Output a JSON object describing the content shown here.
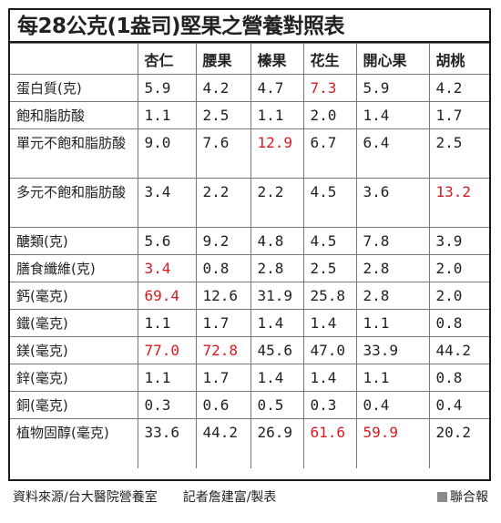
{
  "title": "每28公克(1盎司)堅果之營養對照表",
  "columns": [
    "",
    "杏仁",
    "腰果",
    "榛果",
    "花生",
    "開心果",
    "胡桃"
  ],
  "rows": [
    {
      "label": "蛋白質(克)",
      "values": [
        "5.9",
        "4.2",
        "4.7",
        "7.3",
        "5.9",
        "4.2"
      ],
      "highlight": [
        false,
        false,
        false,
        true,
        false,
        false
      ],
      "tall": false
    },
    {
      "label": "飽和脂肪酸",
      "values": [
        "1.1",
        "2.5",
        "1.1",
        "2.0",
        "1.4",
        "1.7"
      ],
      "highlight": [
        false,
        false,
        false,
        false,
        false,
        false
      ],
      "tall": false
    },
    {
      "label": "單元不飽和脂肪酸",
      "values": [
        "9.0",
        "7.6",
        "12.9",
        "6.7",
        "6.4",
        "2.5"
      ],
      "highlight": [
        false,
        false,
        true,
        false,
        false,
        false
      ],
      "tall": true
    },
    {
      "label": "多元不飽和脂肪酸",
      "values": [
        "3.4",
        "2.2",
        "2.2",
        "4.5",
        "3.6",
        "13.2"
      ],
      "highlight": [
        false,
        false,
        false,
        false,
        false,
        true
      ],
      "tall": true
    },
    {
      "label": "醣類(克)",
      "values": [
        "5.6",
        "9.2",
        "4.8",
        "4.5",
        "7.8",
        "3.9"
      ],
      "highlight": [
        false,
        false,
        false,
        false,
        false,
        false
      ],
      "tall": false
    },
    {
      "label": "膳食纖維(克)",
      "values": [
        "3.4",
        "0.8",
        "2.8",
        "2.5",
        "2.8",
        "2.0"
      ],
      "highlight": [
        true,
        false,
        false,
        false,
        false,
        false
      ],
      "tall": false
    },
    {
      "label": "鈣(毫克)",
      "values": [
        "69.4",
        "12.6",
        "31.9",
        "25.8",
        "2.8",
        "2.0"
      ],
      "highlight": [
        true,
        false,
        false,
        false,
        false,
        false
      ],
      "tall": false
    },
    {
      "label": "鐵(毫克)",
      "values": [
        "1.1",
        "1.7",
        "1.4",
        "1.4",
        "1.1",
        "0.8"
      ],
      "highlight": [
        false,
        false,
        false,
        false,
        false,
        false
      ],
      "tall": false
    },
    {
      "label": "鎂(毫克)",
      "values": [
        "77.0",
        "72.8",
        "45.6",
        "47.0",
        "33.9",
        "44.2"
      ],
      "highlight": [
        true,
        true,
        false,
        false,
        false,
        false
      ],
      "tall": false
    },
    {
      "label": "鋅(毫克)",
      "values": [
        "1.1",
        "1.7",
        "1.4",
        "1.4",
        "1.1",
        "0.8"
      ],
      "highlight": [
        false,
        false,
        false,
        false,
        false,
        false
      ],
      "tall": false
    },
    {
      "label": "銅(毫克)",
      "values": [
        "0.3",
        "0.6",
        "0.5",
        "0.3",
        "0.4",
        "0.4"
      ],
      "highlight": [
        false,
        false,
        false,
        false,
        false,
        false
      ],
      "tall": false
    },
    {
      "label": "植物固醇(毫克)",
      "values": [
        "33.6",
        "44.2",
        "26.9",
        "61.6",
        "59.9",
        "20.2"
      ],
      "highlight": [
        false,
        false,
        false,
        true,
        true,
        false
      ],
      "tall": true
    }
  ],
  "footer": {
    "source": "資料來源/台大醫院營養室",
    "reporter": "記者詹建富/製表",
    "brand": "聯合報"
  },
  "colors": {
    "highlight": "#d31c22",
    "border": "#1a1a1a"
  }
}
